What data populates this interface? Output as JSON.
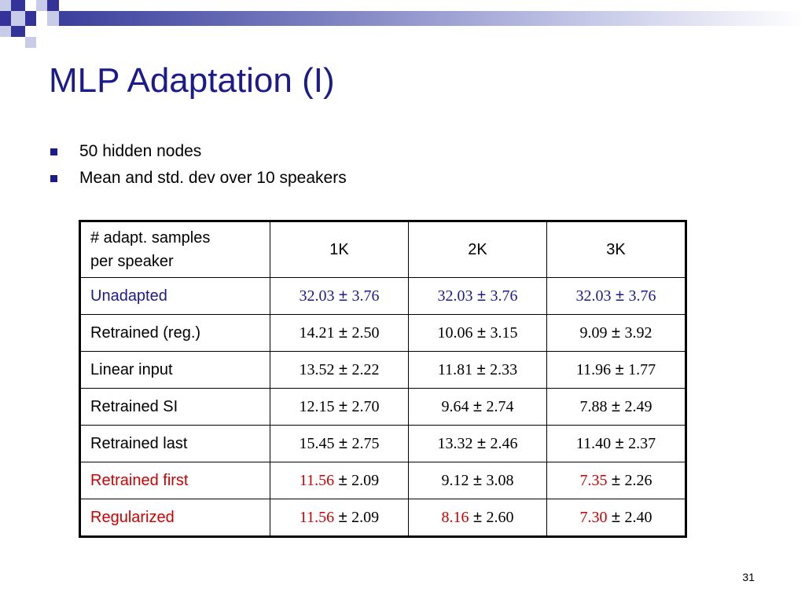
{
  "slide": {
    "title": "MLP Adaptation (I)",
    "bullets": [
      "50 hidden nodes",
      "Mean and std. dev over 10 speakers"
    ],
    "page_number": "31",
    "colors": {
      "title": "#1b1b8c",
      "highlight_blue": "#1b1b8c",
      "highlight_red": "#cc0000",
      "bullet": "#1b1b8c"
    }
  },
  "table": {
    "header": {
      "corner_line1": "# adapt. samples",
      "corner_line2": "per speaker",
      "columns": [
        "1K",
        "2K",
        "3K"
      ]
    },
    "rows": [
      {
        "label": "Unadapted",
        "label_color": "blue",
        "cells": [
          {
            "mean": "32.03",
            "pm": " ± ",
            "std": "3.76",
            "mean_color": "blue",
            "rest_color": "blue"
          },
          {
            "mean": "32.03",
            "pm": " ± ",
            "std": "3.76",
            "mean_color": "blue",
            "rest_color": "blue"
          },
          {
            "mean": "32.03",
            "pm": " ± ",
            "std": "3.76",
            "mean_color": "blue",
            "rest_color": "blue"
          }
        ]
      },
      {
        "label": "Retrained (reg.)",
        "label_color": "black",
        "cells": [
          {
            "mean": "14.21",
            "pm": " ± ",
            "std": "2.50",
            "mean_color": "black",
            "rest_color": "black"
          },
          {
            "mean": "10.06",
            "pm": " ± ",
            "std": "3.15",
            "mean_color": "black",
            "rest_color": "black"
          },
          {
            "mean": "9.09",
            "pm": " ± ",
            "std": "3.92",
            "mean_color": "black",
            "rest_color": "black"
          }
        ]
      },
      {
        "label": "Linear input",
        "label_color": "black",
        "cells": [
          {
            "mean": "13.52",
            "pm": " ± ",
            "std": "2.22",
            "mean_color": "black",
            "rest_color": "black"
          },
          {
            "mean": "11.81",
            "pm": " ± ",
            "std": "2.33",
            "mean_color": "black",
            "rest_color": "black"
          },
          {
            "mean": "11.96",
            "pm": " ± ",
            "std": "1.77",
            "mean_color": "black",
            "rest_color": "black"
          }
        ]
      },
      {
        "label": "Retrained SI",
        "label_color": "black",
        "cells": [
          {
            "mean": "12.15",
            "pm": " ± ",
            "std": "2.70",
            "mean_color": "black",
            "rest_color": "black"
          },
          {
            "mean": "9.64",
            "pm": " ± ",
            "std": "2.74",
            "mean_color": "black",
            "rest_color": "black"
          },
          {
            "mean": "7.88",
            "pm": " ± ",
            "std": "2.49",
            "mean_color": "black",
            "rest_color": "black"
          }
        ]
      },
      {
        "label": "Retrained last",
        "label_color": "black",
        "cells": [
          {
            "mean": "15.45",
            "pm": " ± ",
            "std": "2.75",
            "mean_color": "black",
            "rest_color": "black"
          },
          {
            "mean": "13.32",
            "pm": " ± ",
            "std": "2.46",
            "mean_color": "black",
            "rest_color": "black"
          },
          {
            "mean": "11.40",
            "pm": " ± ",
            "std": "2.37",
            "mean_color": "black",
            "rest_color": "black"
          }
        ]
      },
      {
        "label": "Retrained first",
        "label_color": "red",
        "cells": [
          {
            "mean": "11.56",
            "pm": " ± ",
            "std": "2.09",
            "mean_color": "red",
            "rest_color": "black"
          },
          {
            "mean": "9.12",
            "pm": " ± ",
            "std": "3.08",
            "mean_color": "black",
            "rest_color": "black"
          },
          {
            "mean": "7.35",
            "pm": " ± ",
            "std": "2.26",
            "mean_color": "red",
            "rest_color": "black"
          }
        ]
      },
      {
        "label": "Regularized",
        "label_color": "red",
        "cells": [
          {
            "mean": "11.56",
            "pm": " ± ",
            "std": "2.09",
            "mean_color": "red",
            "rest_color": "black"
          },
          {
            "mean": "8.16",
            "pm": " ± ",
            "std": "2.60",
            "mean_color": "red",
            "rest_color": "black"
          },
          {
            "mean": "7.30",
            "pm": " ± ",
            "std": "2.40",
            "mean_color": "red",
            "rest_color": "black"
          }
        ]
      }
    ]
  }
}
